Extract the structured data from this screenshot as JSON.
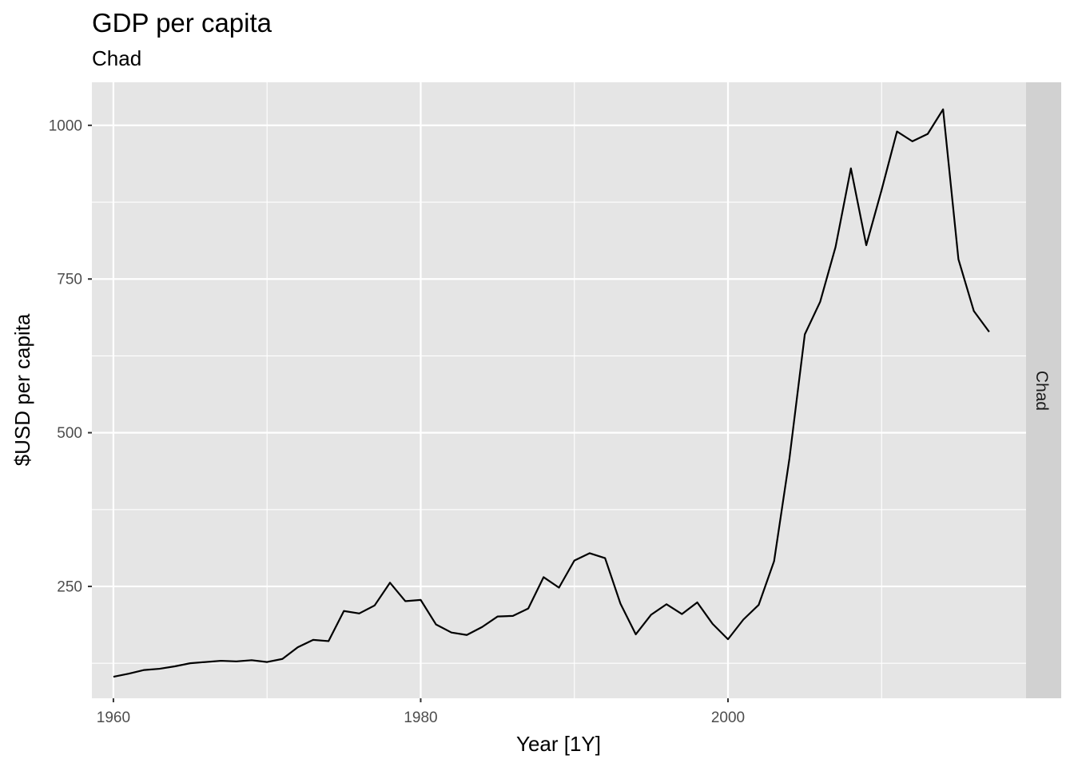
{
  "chart_data": {
    "type": "line",
    "title": "GDP per capita",
    "subtitle": "Chad",
    "xlabel": "Year [1Y]",
    "ylabel": "$USD per capita",
    "facet_label": "Chad",
    "xlim": [
      1958.6,
      2019.4
    ],
    "ylim": [
      68,
      1070
    ],
    "x_ticks": [
      1960,
      1980,
      2000
    ],
    "x_minor_ticks": [
      1970,
      1990,
      2010
    ],
    "y_ticks": [
      250,
      500,
      750,
      1000
    ],
    "y_minor_ticks": [
      125,
      375,
      625,
      875
    ],
    "grid": true,
    "legend": "none",
    "colors": {
      "panel_bg": "#e5e5e5",
      "grid": "#ffffff",
      "line": "#000000",
      "strip_bg": "#d1d1d1"
    },
    "series": [
      {
        "x": [
          1960,
          1961,
          1962,
          1963,
          1964,
          1965,
          1966,
          1967,
          1968,
          1969,
          1970,
          1971,
          1972,
          1973,
          1974,
          1975,
          1976,
          1977,
          1978,
          1979,
          1980,
          1981,
          1982,
          1983,
          1984,
          1985,
          1986,
          1987,
          1988,
          1989,
          1990,
          1991,
          1992,
          1993,
          1994,
          1995,
          1996,
          1997,
          1998,
          1999,
          2000,
          2001,
          2002,
          2003,
          2004,
          2005,
          2006,
          2007,
          2008,
          2009,
          2010,
          2011,
          2012,
          2013,
          2014,
          2015,
          2016,
          2017
        ],
        "values": [
          103,
          108,
          114,
          116,
          120,
          125,
          127,
          129,
          128,
          130,
          127,
          132,
          151,
          163,
          161,
          210,
          206,
          219,
          256,
          226,
          228,
          188,
          175,
          171,
          184,
          201,
          202,
          214,
          265,
          248,
          292,
          304,
          296,
          222,
          172,
          204,
          221,
          205,
          224,
          189,
          164,
          196,
          220,
          291,
          458,
          660,
          713,
          802,
          930,
          805,
          895,
          990,
          974,
          986,
          1026,
          782,
          698,
          664
        ]
      }
    ]
  }
}
